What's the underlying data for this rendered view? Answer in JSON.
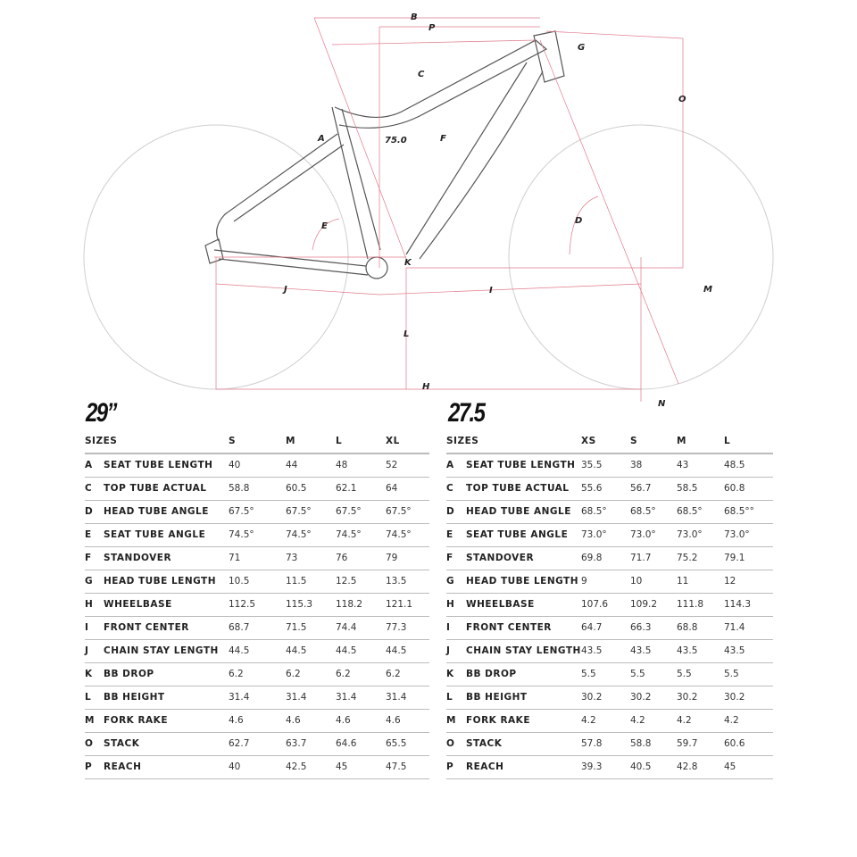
{
  "diagram": {
    "labels": {
      "B": "B",
      "P": "P",
      "G": "G",
      "C": "C",
      "O": "O",
      "A": "A",
      "seat_angle": "75.0",
      "F": "F",
      "E": "E",
      "D": "D",
      "K": "K",
      "J": "J",
      "I": "I",
      "M": "M",
      "L": "L",
      "H": "H",
      "N": "N"
    },
    "colors": {
      "frame": "#555555",
      "wheel": "#cccccc",
      "dimension": "#e07a8a"
    }
  },
  "tables": [
    {
      "title": "29”",
      "header": [
        "SIZES",
        "S",
        "M",
        "L",
        "XL"
      ],
      "rows": [
        {
          "letter": "A",
          "label": "SEAT TUBE LENGTH",
          "values": [
            "40",
            "44",
            "48",
            "52"
          ]
        },
        {
          "letter": "C",
          "label": "TOP TUBE ACTUAL",
          "values": [
            "58.8",
            "60.5",
            "62.1",
            "64"
          ]
        },
        {
          "letter": "D",
          "label": "HEAD TUBE ANGLE",
          "values": [
            "67.5°",
            "67.5°",
            "67.5°",
            "67.5°"
          ]
        },
        {
          "letter": "E",
          "label": "SEAT TUBE ANGLE",
          "values": [
            "74.5°",
            "74.5°",
            "74.5°",
            "74.5°"
          ]
        },
        {
          "letter": "F",
          "label": "STANDOVER",
          "values": [
            "71",
            "73",
            "76",
            "79"
          ]
        },
        {
          "letter": "G",
          "label": "HEAD TUBE LENGTH",
          "values": [
            "10.5",
            "11.5",
            "12.5",
            "13.5"
          ]
        },
        {
          "letter": "H",
          "label": "WHEELBASE",
          "values": [
            "112.5",
            "115.3",
            "118.2",
            "121.1"
          ]
        },
        {
          "letter": "I",
          "label": "FRONT CENTER",
          "values": [
            "68.7",
            "71.5",
            "74.4",
            "77.3"
          ]
        },
        {
          "letter": "J",
          "label": "CHAIN STAY LENGTH",
          "values": [
            "44.5",
            "44.5",
            "44.5",
            "44.5"
          ]
        },
        {
          "letter": "K",
          "label": "BB DROP",
          "values": [
            "6.2",
            "6.2",
            "6.2",
            "6.2"
          ]
        },
        {
          "letter": "L",
          "label": "BB HEIGHT",
          "values": [
            "31.4",
            "31.4",
            "31.4",
            "31.4"
          ]
        },
        {
          "letter": "M",
          "label": "FORK RAKE",
          "values": [
            "4.6",
            "4.6",
            "4.6",
            "4.6"
          ]
        },
        {
          "letter": "O",
          "label": "STACK",
          "values": [
            "62.7",
            "63.7",
            "64.6",
            "65.5"
          ]
        },
        {
          "letter": "P",
          "label": "REACH",
          "values": [
            "40",
            "42.5",
            "45",
            "47.5"
          ]
        }
      ]
    },
    {
      "title": "27.5",
      "header": [
        "SIZES",
        "XS",
        "S",
        "M",
        "L"
      ],
      "rows": [
        {
          "letter": "A",
          "label": "SEAT TUBE LENGTH",
          "values": [
            "35.5",
            "38",
            "43",
            "48.5"
          ]
        },
        {
          "letter": "C",
          "label": "TOP TUBE ACTUAL",
          "values": [
            "55.6",
            "56.7",
            "58.5",
            "60.8"
          ]
        },
        {
          "letter": "D",
          "label": "HEAD TUBE ANGLE",
          "values": [
            "68.5°",
            "68.5°",
            "68.5°",
            "68.5°°"
          ]
        },
        {
          "letter": "E",
          "label": "SEAT TUBE ANGLE",
          "values": [
            "73.0°",
            "73.0°",
            "73.0°",
            "73.0°"
          ]
        },
        {
          "letter": "F",
          "label": "STANDOVER",
          "values": [
            "69.8",
            "71.7",
            "75.2",
            "79.1"
          ]
        },
        {
          "letter": "G",
          "label": "HEAD TUBE LENGTH",
          "values": [
            "9",
            "10",
            "11",
            "12"
          ]
        },
        {
          "letter": "H",
          "label": "WHEELBASE",
          "values": [
            "107.6",
            "109.2",
            "111.8",
            "114.3"
          ]
        },
        {
          "letter": "I",
          "label": "FRONT CENTER",
          "values": [
            "64.7",
            "66.3",
            "68.8",
            "71.4"
          ]
        },
        {
          "letter": "J",
          "label": "CHAIN STAY LENGTH",
          "values": [
            "43.5",
            "43.5",
            "43.5",
            "43.5"
          ]
        },
        {
          "letter": "K",
          "label": "BB DROP",
          "values": [
            "5.5",
            "5.5",
            "5.5",
            "5.5"
          ]
        },
        {
          "letter": "L",
          "label": "BB HEIGHT",
          "values": [
            "30.2",
            "30.2",
            "30.2",
            "30.2"
          ]
        },
        {
          "letter": "M",
          "label": "FORK RAKE",
          "values": [
            "4.2",
            "4.2",
            "4.2",
            "4.2"
          ]
        },
        {
          "letter": "O",
          "label": "STACK",
          "values": [
            "57.8",
            "58.8",
            "59.7",
            "60.6"
          ]
        },
        {
          "letter": "P",
          "label": "REACH",
          "values": [
            "39.3",
            "40.5",
            "42.8",
            "45"
          ]
        }
      ]
    }
  ]
}
